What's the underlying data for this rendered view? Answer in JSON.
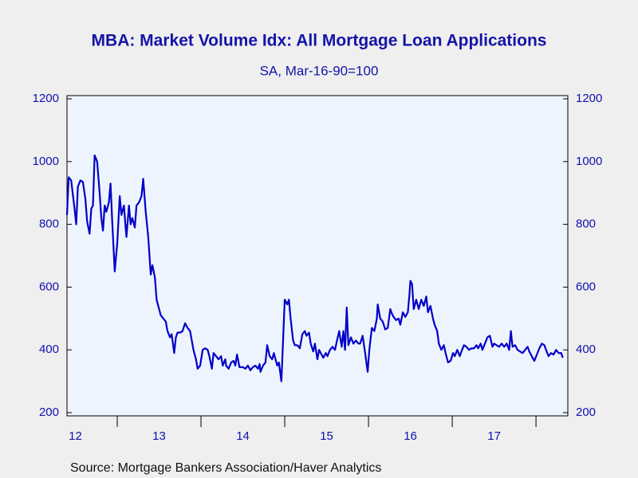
{
  "chart_data": {
    "type": "line",
    "title": "MBA: Market Volume Idx: All Mortgage Loan Applications",
    "subtitle": "SA, Mar-16-90=100",
    "source": "Source:  Mortgage Bankers Association/Haver Analytics",
    "xlim": [
      2012.4,
      2018.38
    ],
    "xticks": [
      2013,
      2014,
      2015,
      2016,
      2017,
      2018
    ],
    "xlabels": [
      {
        "value": 2012.5,
        "label": "12"
      },
      {
        "value": 2013.5,
        "label": "13"
      },
      {
        "value": 2014.5,
        "label": "14"
      },
      {
        "value": 2015.5,
        "label": "15"
      },
      {
        "value": 2016.5,
        "label": "16"
      },
      {
        "value": 2017.5,
        "label": "17"
      }
    ],
    "ylim": [
      200,
      1200
    ],
    "yticks": [
      200,
      400,
      600,
      800,
      1000,
      1200
    ],
    "y2lim": [
      200,
      1200
    ],
    "y2ticks": [
      200,
      400,
      600,
      800,
      1000,
      1200
    ],
    "series": [
      {
        "color": "#0000c8",
        "x": [
          2012.4,
          2012.42,
          2012.45,
          2012.49,
          2012.51,
          2012.53,
          2012.56,
          2012.59,
          2012.62,
          2012.64,
          2012.67,
          2012.69,
          2012.71,
          2012.73,
          2012.76,
          2012.79,
          2012.81,
          2012.83,
          2012.85,
          2012.87,
          2012.9,
          2012.92,
          2012.94,
          2012.97,
          2013.0,
          2013.03,
          2013.05,
          2013.08,
          2013.1,
          2013.11,
          2013.14,
          2013.16,
          2013.18,
          2013.21,
          2013.23,
          2013.26,
          2013.29,
          2013.31,
          2013.34,
          2013.37,
          2013.4,
          2013.42,
          2013.45,
          2013.47,
          2013.5,
          2013.52,
          2013.55,
          2013.58,
          2013.6,
          2013.63,
          2013.65,
          2013.68,
          2013.7,
          2013.72,
          2013.75,
          2013.78,
          2013.81,
          2013.84,
          2013.87,
          2013.89,
          2013.91,
          2013.94,
          2013.96,
          2013.99,
          2014.02,
          2014.05,
          2014.08,
          2014.1,
          2014.13,
          2014.15,
          2014.18,
          2014.21,
          2014.24,
          2014.26,
          2014.29,
          2014.3,
          2014.33,
          2014.36,
          2014.39,
          2014.41,
          2014.43,
          2014.46,
          2014.49,
          2014.5,
          2014.53,
          2014.56,
          2014.59,
          2014.62,
          2014.65,
          2014.68,
          2014.7,
          2014.71,
          2014.74,
          2014.77,
          2014.79,
          2014.82,
          2014.85,
          2014.87,
          2014.9,
          2014.91,
          2014.93,
          2014.96,
          2014.98,
          2015.0,
          2015.03,
          2015.05,
          2015.07,
          2015.1,
          2015.12,
          2015.15,
          2015.18,
          2015.21,
          2015.24,
          2015.26,
          2015.29,
          2015.31,
          2015.34,
          2015.36,
          2015.39,
          2015.41,
          2015.44,
          2015.46,
          2015.49,
          2015.51,
          2015.54,
          2015.57,
          2015.6,
          2015.62,
          2015.65,
          2015.68,
          2015.7,
          2015.72,
          2015.74,
          2015.76,
          2015.79,
          2015.82,
          2015.85,
          2015.88,
          2015.9,
          2015.93,
          2015.96,
          2015.99,
          2016.01,
          2016.04,
          2016.07,
          2016.1,
          2016.11,
          2016.14,
          2016.17,
          2016.2,
          2016.23,
          2016.26,
          2016.28,
          2016.3,
          2016.33,
          2016.36,
          2016.38,
          2016.41,
          2016.44,
          2016.47,
          2016.49,
          2016.5,
          2016.52,
          2016.54,
          2016.57,
          2016.6,
          2016.63,
          2016.66,
          2016.69,
          2016.71,
          2016.74,
          2016.77,
          2016.79,
          2016.82,
          2016.84,
          2016.87,
          2016.9,
          2016.92,
          2016.95,
          2016.98,
          2017.01,
          2017.03,
          2017.06,
          2017.09,
          2017.11,
          2017.14,
          2017.17,
          2017.2,
          2017.23,
          2017.26,
          2017.29,
          2017.31,
          2017.34,
          2017.36,
          2017.39,
          2017.42,
          2017.45,
          2017.48,
          2017.5,
          2017.53,
          2017.56,
          2017.59,
          2017.62,
          2017.65,
          2017.68,
          2017.7,
          2017.72,
          2017.75,
          2017.78,
          2017.81,
          2017.84,
          2017.87,
          2017.9,
          2017.92,
          2017.95,
          2017.98,
          2018.01,
          2018.04,
          2018.07,
          2018.1,
          2018.12,
          2018.15,
          2018.18,
          2018.21,
          2018.24,
          2018.27,
          2018.3,
          2018.32
        ],
        "values": [
          830,
          950,
          940,
          850,
          800,
          920,
          940,
          935,
          880,
          810,
          770,
          850,
          860,
          1020,
          1000,
          900,
          820,
          780,
          860,
          840,
          870,
          930,
          810,
          650,
          740,
          890,
          830,
          860,
          790,
          760,
          860,
          800,
          820,
          790,
          860,
          870,
          890,
          945,
          840,
          760,
          640,
          670,
          630,
          560,
          530,
          510,
          500,
          490,
          460,
          440,
          450,
          390,
          440,
          455,
          455,
          460,
          485,
          470,
          460,
          430,
          400,
          370,
          340,
          350,
          400,
          405,
          400,
          380,
          340,
          390,
          380,
          370,
          380,
          350,
          370,
          350,
          340,
          360,
          365,
          350,
          385,
          345,
          345,
          345,
          340,
          350,
          335,
          345,
          350,
          340,
          355,
          330,
          350,
          360,
          415,
          380,
          370,
          390,
          360,
          350,
          360,
          300,
          430,
          560,
          545,
          560,
          500,
          430,
          415,
          415,
          405,
          450,
          460,
          445,
          455,
          420,
          395,
          420,
          370,
          400,
          385,
          375,
          390,
          380,
          400,
          410,
          400,
          425,
          460,
          410,
          460,
          400,
          535,
          415,
          440,
          420,
          430,
          420,
          420,
          445,
          390,
          330,
          400,
          470,
          460,
          500,
          545,
          500,
          490,
          465,
          470,
          530,
          515,
          505,
          495,
          500,
          480,
          520,
          505,
          520,
          580,
          620,
          610,
          530,
          560,
          530,
          560,
          540,
          570,
          520,
          540,
          500,
          480,
          460,
          420,
          400,
          415,
          390,
          360,
          365,
          390,
          380,
          400,
          380,
          395,
          415,
          410,
          400,
          405,
          405,
          415,
          405,
          420,
          400,
          420,
          440,
          445,
          410,
          420,
          415,
          410,
          420,
          410,
          420,
          400,
          460,
          410,
          415,
          400,
          395,
          390,
          400,
          410,
          395,
          380,
          365,
          385,
          405,
          420,
          415,
          400,
          380,
          390,
          385,
          400,
          390,
          390,
          375
        ]
      }
    ]
  }
}
